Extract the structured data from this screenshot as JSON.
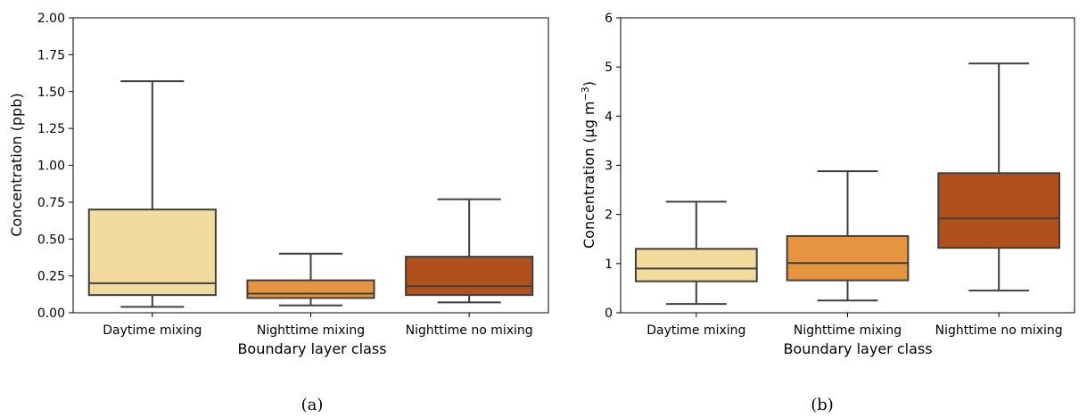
{
  "chart_data": [
    {
      "type": "box",
      "caption": "(a)",
      "xlabel": "Boundary layer class",
      "ylabel": "Concentration (ppb)",
      "ylim": [
        0,
        2.0
      ],
      "yticks": [
        "0.00",
        "0.25",
        "0.50",
        "0.75",
        "1.00",
        "1.25",
        "1.50",
        "1.75",
        "2.00"
      ],
      "grid": false,
      "categories": [
        "Daytime mixing",
        "Nighttime mixing",
        "Nighttime no mixing"
      ],
      "colors": [
        "#f1dc9e",
        "#e59540",
        "#b0511c"
      ],
      "boxes": [
        {
          "min": 0.04,
          "q1": 0.12,
          "median": 0.2,
          "q3": 0.7,
          "max": 1.57
        },
        {
          "min": 0.05,
          "q1": 0.1,
          "median": 0.13,
          "q3": 0.22,
          "max": 0.4
        },
        {
          "min": 0.07,
          "q1": 0.12,
          "median": 0.18,
          "q3": 0.38,
          "max": 0.77
        }
      ]
    },
    {
      "type": "box",
      "caption": "(b)",
      "xlabel": "Boundary layer class",
      "ylabel_main": "Concentration (µg m",
      "ylabel_sup": "−3",
      "ylabel_end": ")",
      "ylim": [
        0,
        6
      ],
      "yticks": [
        "0",
        "1",
        "2",
        "3",
        "4",
        "5",
        "6"
      ],
      "grid": false,
      "categories": [
        "Daytime mixing",
        "Nighttime mixing",
        "Nighttime no mixing"
      ],
      "colors": [
        "#f1dc9e",
        "#e59540",
        "#b0511c"
      ],
      "boxes": [
        {
          "min": 0.18,
          "q1": 0.64,
          "median": 0.9,
          "q3": 1.3,
          "max": 2.26
        },
        {
          "min": 0.25,
          "q1": 0.66,
          "median": 1.01,
          "q3": 1.56,
          "max": 2.88
        },
        {
          "min": 0.45,
          "q1": 1.32,
          "median": 1.92,
          "q3": 2.84,
          "max": 5.07
        }
      ]
    }
  ]
}
